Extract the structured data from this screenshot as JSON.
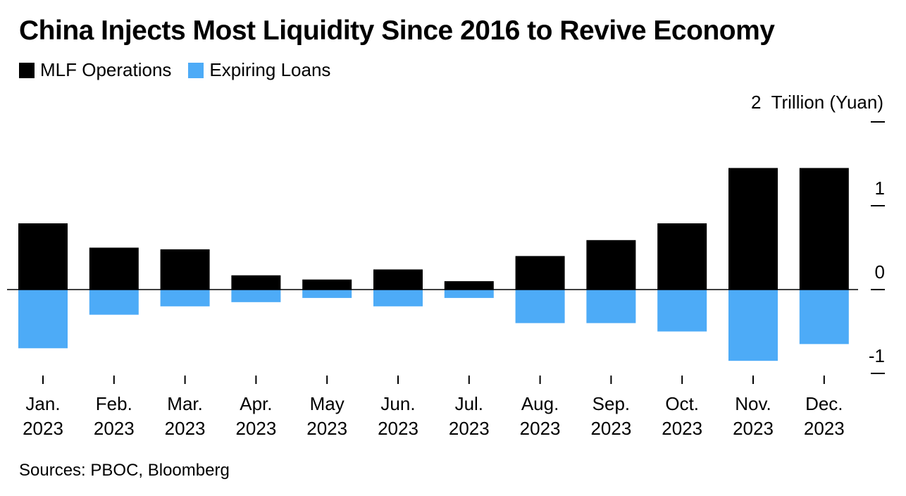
{
  "title": "China Injects Most Liquidity Since 2016 to Revive Economy",
  "legend": {
    "mlf_label": "MLF Operations",
    "expiring_label": "Expiring Loans"
  },
  "source": "Sources: PBOC, Bloomberg",
  "colors": {
    "mlf": "#000000",
    "expiring": "#4dabf7"
  },
  "chart_data": {
    "type": "bar",
    "stacked": true,
    "categories": [
      [
        "Jan.",
        "2023"
      ],
      [
        "Feb.",
        "2023"
      ],
      [
        "Mar.",
        "2023"
      ],
      [
        "Apr.",
        "2023"
      ],
      [
        "May",
        "2023"
      ],
      [
        "Jun.",
        "2023"
      ],
      [
        "Jul.",
        "2023"
      ],
      [
        "Aug.",
        "2023"
      ],
      [
        "Sep.",
        "2023"
      ],
      [
        "Oct.",
        "2023"
      ],
      [
        "Nov.",
        "2023"
      ],
      [
        "Dec.",
        "2023"
      ]
    ],
    "series": [
      {
        "name": "MLF Operations",
        "values": [
          0.79,
          0.5,
          0.48,
          0.17,
          0.12,
          0.24,
          0.1,
          0.4,
          0.59,
          0.79,
          1.45,
          1.45
        ]
      },
      {
        "name": "Expiring Loans",
        "values": [
          -0.7,
          -0.3,
          -0.2,
          -0.15,
          -0.1,
          -0.2,
          -0.1,
          -0.4,
          -0.4,
          -0.5,
          -0.85,
          -0.65
        ]
      }
    ],
    "ylim": [
      -1,
      2
    ],
    "y_ticks": [
      2,
      1,
      0,
      -1
    ],
    "y_tick_labels": [
      "2",
      "1",
      "0",
      "-1"
    ],
    "ylabel": "Trillion (Yuan)",
    "legend_position": "top-left"
  }
}
